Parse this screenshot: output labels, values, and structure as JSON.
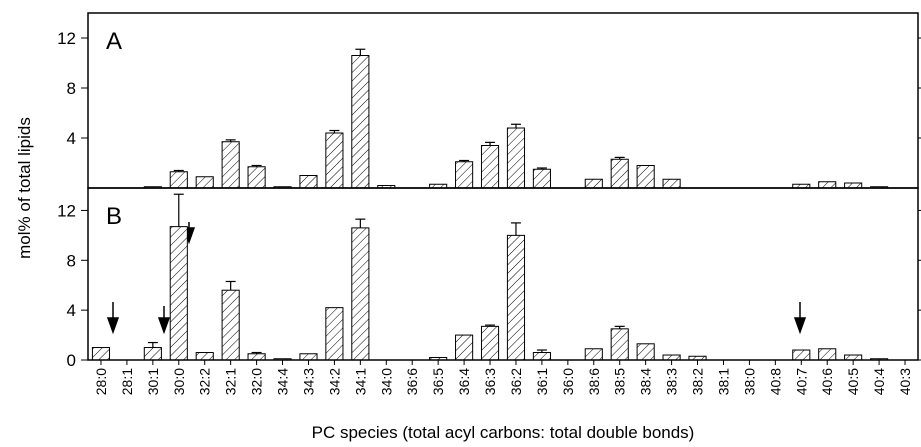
{
  "chart_data": [
    {
      "type": "bar",
      "panel_label": "A",
      "ylabel": "mol% of total lipids",
      "color": "#000000",
      "values": [
        0,
        0,
        0.1,
        1.3,
        0.9,
        3.7,
        1.7,
        0.1,
        1.0,
        4.4,
        10.6,
        0.2,
        0,
        0.3,
        2.1,
        3.4,
        4.8,
        1.5,
        0,
        0.7,
        2.3,
        1.8,
        0.7,
        0,
        0,
        0,
        0,
        0.3,
        0.5,
        0.4,
        0.1,
        0
      ],
      "errors": [
        0,
        0,
        0,
        0.1,
        0,
        0.15,
        0.1,
        0,
        0,
        0.2,
        0.5,
        0,
        0,
        0,
        0.1,
        0.25,
        0.3,
        0.1,
        0,
        0,
        0.15,
        0,
        0,
        0,
        0,
        0,
        0,
        0,
        0,
        0,
        0,
        0
      ],
      "ylim": [
        0,
        14
      ],
      "yticks": [
        4,
        8,
        12
      ]
    },
    {
      "type": "bar",
      "panel_label": "B",
      "xlabel": "PC species (total acyl carbons: total double bonds)",
      "color": "#000000",
      "categories": [
        "28:0",
        "28:1",
        "30:1",
        "30:0",
        "32:2",
        "32:1",
        "32:0",
        "34:4",
        "34:3",
        "34:2",
        "34:1",
        "34:0",
        "36:6",
        "36:5",
        "36:4",
        "36:3",
        "36:2",
        "36:1",
        "36:0",
        "38:6",
        "38:5",
        "38:4",
        "38:3",
        "38:2",
        "38:1",
        "38:0",
        "40:8",
        "40:7",
        "40:6",
        "40:5",
        "40:4",
        "40:3"
      ],
      "values": [
        1.0,
        0,
        1.0,
        10.7,
        0.6,
        5.6,
        0.5,
        0.1,
        0.5,
        4.2,
        10.6,
        0,
        0,
        0.2,
        2.0,
        2.7,
        10.0,
        0.6,
        0,
        0.9,
        2.5,
        1.3,
        0.4,
        0.3,
        0,
        0,
        0,
        0.8,
        0.9,
        0.4,
        0.1,
        0
      ],
      "errors": [
        0,
        0,
        0.4,
        2.6,
        0,
        0.7,
        0.1,
        0,
        0,
        0,
        0.7,
        0,
        0,
        0,
        0,
        0.1,
        1.0,
        0.2,
        0,
        0,
        0.2,
        0,
        0,
        0,
        0,
        0,
        0,
        0,
        0,
        0,
        0,
        0
      ],
      "ylim": [
        0,
        13.8
      ],
      "yticks": [
        0,
        4,
        8,
        12
      ]
    }
  ]
}
